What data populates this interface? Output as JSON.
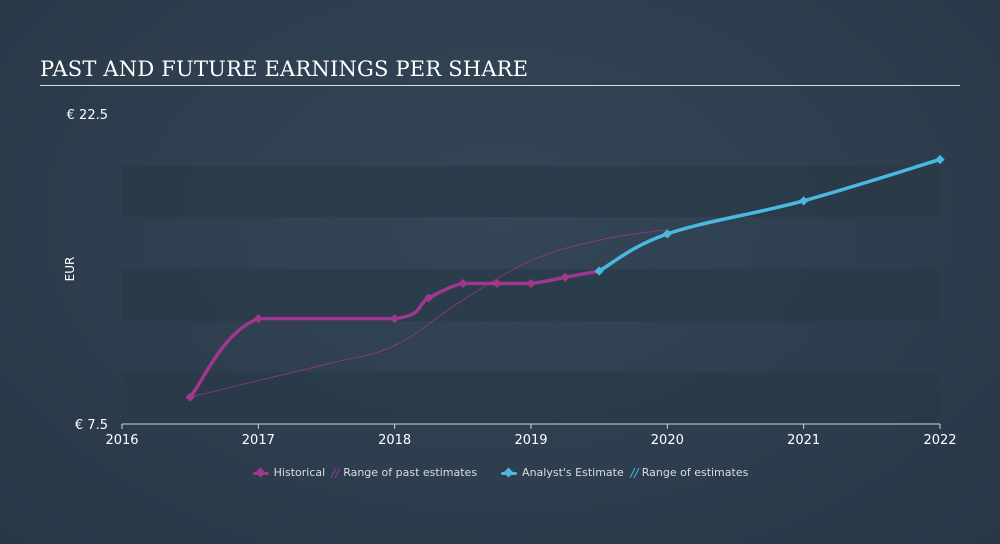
{
  "chart_data": {
    "type": "line",
    "title": "PAST AND FUTURE EARNINGS PER SHARE",
    "ylabel": "EUR",
    "ylim": [
      7.5,
      22.5
    ],
    "y_tick_labels": [
      "€ 22.5",
      "€ 7.5"
    ],
    "xlim": [
      2016,
      2022
    ],
    "x_ticks": [
      "2016",
      "2017",
      "2018",
      "2019",
      "2020",
      "2021",
      "2022"
    ],
    "series": [
      {
        "name": "Historical",
        "color": "#a0378f",
        "points": [
          {
            "x": 2016.5,
            "y": 8.8
          },
          {
            "x": 2017.0,
            "y": 12.6
          },
          {
            "x": 2018.0,
            "y": 12.6
          },
          {
            "x": 2018.25,
            "y": 13.6
          },
          {
            "x": 2018.5,
            "y": 14.3
          },
          {
            "x": 2018.75,
            "y": 14.3
          },
          {
            "x": 2019.0,
            "y": 14.3
          },
          {
            "x": 2019.25,
            "y": 14.6
          },
          {
            "x": 2019.5,
            "y": 14.9
          }
        ]
      },
      {
        "name": "Range of past estimates",
        "color": "#a0378f",
        "points": [
          {
            "x": 2016.5,
            "y": 8.8
          },
          {
            "x": 2017.0,
            "y": 9.6
          },
          {
            "x": 2017.5,
            "y": 10.4
          },
          {
            "x": 2018.0,
            "y": 11.3
          },
          {
            "x": 2018.5,
            "y": 13.5
          },
          {
            "x": 2019.0,
            "y": 15.4
          },
          {
            "x": 2019.5,
            "y": 16.4
          },
          {
            "x": 2020.0,
            "y": 16.9
          }
        ]
      },
      {
        "name": "Analyst's Estimate",
        "color": "#4ab8e0",
        "points": [
          {
            "x": 2019.5,
            "y": 14.9
          },
          {
            "x": 2020.0,
            "y": 16.7
          },
          {
            "x": 2021.0,
            "y": 18.3
          },
          {
            "x": 2022.0,
            "y": 20.3
          }
        ]
      }
    ],
    "legend": [
      {
        "label": "Historical",
        "color": "#a0378f",
        "kind": "line-marker"
      },
      {
        "label": "Range of past estimates",
        "color": "#a0378f",
        "kind": "hatch"
      },
      {
        "label": "Analyst's Estimate",
        "color": "#4ab8e0",
        "kind": "line-marker"
      },
      {
        "label": "Range of estimates",
        "color": "#4ab8e0",
        "kind": "hatch"
      }
    ],
    "legend_position": "bottom-center",
    "grid": "horizontal bands"
  }
}
